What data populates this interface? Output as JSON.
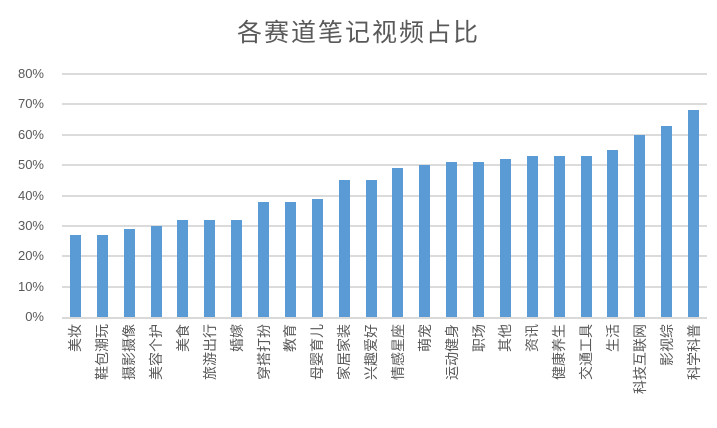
{
  "chart_data": {
    "type": "bar",
    "title": "各赛道笔记视频占比",
    "categories": [
      "美妆",
      "鞋包潮玩",
      "摄影摄像",
      "美容个护",
      "美食",
      "旅游出行",
      "婚嫁",
      "穿搭打扮",
      "教育",
      "母婴育儿",
      "家居家装",
      "兴趣爱好",
      "情感星座",
      "萌宠",
      "运动健身",
      "职场",
      "其他",
      "资讯",
      "健康养生",
      "交通工具",
      "生活",
      "科技互联网",
      "影视综",
      "科学科普"
    ],
    "values": [
      27,
      27,
      29,
      30,
      32,
      32,
      32,
      38,
      38,
      39,
      45,
      45,
      49,
      50,
      51,
      51,
      52,
      53,
      53,
      53,
      55,
      60,
      63,
      68
    ],
    "unit": "%",
    "xlabel": "",
    "ylabel": "",
    "ylim": [
      0,
      80
    ],
    "y_ticks": [
      "0%",
      "10%",
      "20%",
      "30%",
      "40%",
      "50%",
      "60%",
      "70%",
      "80%"
    ],
    "grid": true,
    "legend_position": "none",
    "bar_color": "#5B9BD5",
    "grid_color": "#DBDBDB",
    "axis_color": "#D9D9D9",
    "text_color": "#595959"
  }
}
